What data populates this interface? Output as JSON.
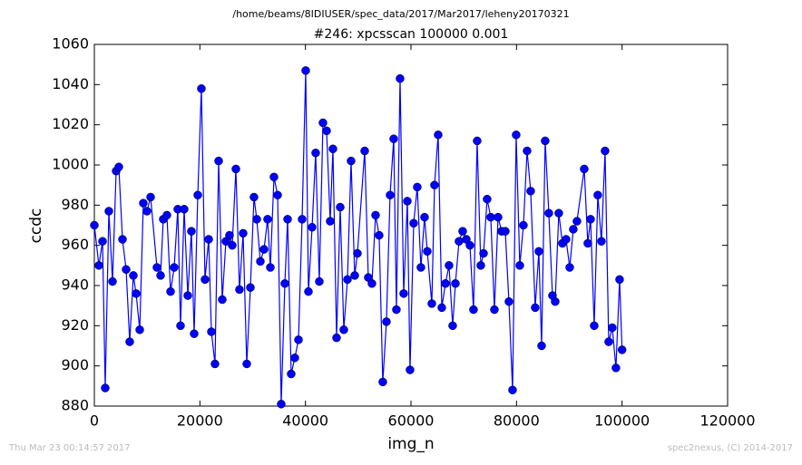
{
  "chart_data": {
    "type": "line",
    "suptitle": "/home/beams/8IDIUSER/spec_data/2017/Mar2017/leheny20170321",
    "title": "#246: xpcsscan 100000 0.001",
    "xlabel": "img_n",
    "ylabel": "ccdc",
    "footer_left": "Thu Mar 23 00:14:57 2017",
    "footer_right": "spec2nexus, (C) 2014-2017",
    "xlim": [
      0,
      120000
    ],
    "xticks": [
      0,
      20000,
      40000,
      60000,
      80000,
      100000,
      120000
    ],
    "ylim": [
      880,
      1060
    ],
    "yticks": [
      880,
      900,
      920,
      940,
      960,
      980,
      1000,
      1020,
      1040,
      1060
    ],
    "series": [
      {
        "color": "#0000ff",
        "x": [
          0,
          860,
          1550,
          2060,
          2750,
          3440,
          4130,
          4640,
          5330,
          6020,
          6700,
          7390,
          7910,
          8600,
          9280,
          9970,
          10660,
          11860,
          12550,
          13060,
          13750,
          14440,
          15130,
          15810,
          16330,
          17020,
          17710,
          18390,
          18910,
          19600,
          20280,
          20970,
          21660,
          22180,
          22860,
          23550,
          24240,
          24930,
          25610,
          26130,
          26820,
          27500,
          28190,
          28880,
          29570,
          30250,
          30770,
          31460,
          32150,
          32830,
          33350,
          34040,
          34730,
          35410,
          36100,
          36620,
          37300,
          37990,
          38680,
          39370,
          40050,
          40570,
          41260,
          41940,
          42630,
          43320,
          44010,
          44690,
          45210,
          45900,
          46590,
          47270,
          47960,
          48650,
          49340,
          49850,
          51230,
          51910,
          52600,
          53290,
          53970,
          54660,
          55350,
          56040,
          56730,
          57240,
          57930,
          58620,
          59310,
          59820,
          60510,
          61190,
          61880,
          62570,
          63090,
          63950,
          64460,
          65150,
          65840,
          66530,
          67210,
          67900,
          68420,
          69100,
          69790,
          70480,
          71170,
          71850,
          72540,
          73230,
          73750,
          74430,
          75120,
          75810,
          76500,
          77180,
          77870,
          78560,
          79250,
          79930,
          80620,
          81310,
          82000,
          82680,
          83540,
          84230,
          84750,
          85430,
          86120,
          86810,
          87330,
          88010,
          88700,
          89390,
          90080,
          90760,
          91450,
          92830,
          93510,
          94030,
          94720,
          95400,
          96090,
          96780,
          97470,
          98150,
          98840,
          99530,
          100000
        ],
        "values": [
          970,
          950,
          962,
          889,
          977,
          942,
          997,
          999,
          963,
          948,
          912,
          945,
          936,
          918,
          981,
          977,
          984,
          949,
          945,
          973,
          975,
          937,
          949,
          978,
          920,
          978,
          935,
          967,
          916,
          985,
          1038,
          943,
          963,
          917,
          901,
          1002,
          933,
          962,
          965,
          960,
          998,
          938,
          966,
          901,
          939,
          984,
          973,
          952,
          958,
          973,
          949,
          994,
          985,
          881,
          941,
          973,
          896,
          904,
          913,
          973,
          1047,
          937,
          969,
          1006,
          942,
          1021,
          1017,
          972,
          1008,
          914,
          979,
          918,
          943,
          1002,
          945,
          956,
          1007,
          944,
          941,
          975,
          965,
          892,
          922,
          985,
          1013,
          928,
          1043,
          936,
          982,
          898,
          971,
          989,
          949,
          974,
          957,
          931,
          990,
          1015,
          929,
          941,
          950,
          920,
          941,
          962,
          967,
          963,
          960,
          928,
          1012,
          950,
          956,
          983,
          974,
          928,
          974,
          967,
          967,
          932,
          888,
          1015,
          950,
          970,
          1007,
          987,
          929,
          957,
          910,
          1012,
          976,
          935,
          932,
          976,
          961,
          963,
          949,
          968,
          972,
          998,
          961,
          973,
          920,
          985,
          962,
          1007,
          912,
          919,
          899,
          943,
          908
        ]
      }
    ]
  }
}
